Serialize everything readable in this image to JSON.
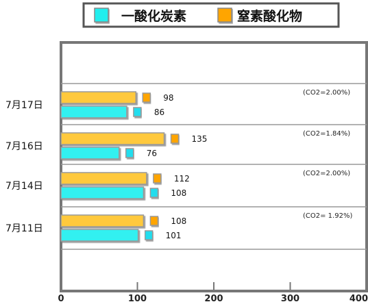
{
  "legend": {
    "items": [
      {
        "label": "一酸化炭素",
        "color": "#22EEEE"
      },
      {
        "label": "窒素酸化物",
        "color": "#FFA500"
      }
    ]
  },
  "chart_data": {
    "type": "bar",
    "orientation": "horizontal",
    "categories": [
      "7月17日",
      "7月16日",
      "7月14日",
      "7月11日"
    ],
    "series": [
      {
        "name": "窒素酸化物",
        "values": [
          98,
          135,
          112,
          108
        ],
        "color": "#FFC93C",
        "marker_color": "#FFA500"
      },
      {
        "name": "一酸化炭素",
        "values": [
          86,
          76,
          108,
          101
        ],
        "color": "#33F0F0",
        "marker_color": "#22DDEE"
      }
    ],
    "annotations": [
      "(CO2=2.00%)",
      "(CO2=1.84%)",
      "(CO2=2.00%)",
      "(CO2= 1.92%)"
    ],
    "xlim": [
      0,
      400
    ],
    "xticks": [
      0,
      100,
      200,
      300,
      400
    ],
    "grid": false,
    "legend_position": "top"
  }
}
